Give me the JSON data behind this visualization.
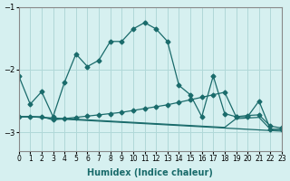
{
  "xlabel": "Humidex (Indice chaleur)",
  "ylabel": "",
  "background_color": "#d6f0f0",
  "grid_color": "#b0d8d8",
  "line_color": "#1a6b6b",
  "xlim": [
    0,
    23
  ],
  "ylim": [
    -3.3,
    -1.0
  ],
  "yticks": [
    -3,
    -2,
    -1
  ],
  "xticks": [
    0,
    1,
    2,
    3,
    4,
    5,
    6,
    7,
    8,
    9,
    10,
    11,
    12,
    13,
    14,
    15,
    16,
    17,
    18,
    19,
    20,
    21,
    22,
    23
  ],
  "series1": [
    -2.1,
    -2.55,
    -2.35,
    -2.75,
    -2.2,
    -1.75,
    -1.95,
    -1.85,
    -1.55,
    -1.55,
    -1.35,
    -1.25,
    -1.35,
    -1.55,
    -2.25,
    -2.4,
    -2.75,
    -2.1,
    -2.7,
    -2.75,
    -2.75,
    -2.5,
    -2.95,
    -2.95
  ],
  "series2": [
    -2.75,
    -2.75,
    -2.75,
    -2.8,
    -2.78,
    -2.76,
    -2.74,
    -2.72,
    -2.7,
    -2.68,
    -2.65,
    -2.62,
    -2.59,
    -2.56,
    -2.52,
    -2.48,
    -2.44,
    -2.4,
    -2.36,
    -2.75,
    -2.73,
    -2.72,
    -2.9,
    -2.93
  ],
  "series3": [
    -2.75,
    -2.75,
    -2.76,
    -2.78,
    -2.79,
    -2.8,
    -2.81,
    -2.82,
    -2.83,
    -2.84,
    -2.85,
    -2.86,
    -2.87,
    -2.88,
    -2.89,
    -2.9,
    -2.91,
    -2.92,
    -2.93,
    -2.94,
    -2.95,
    -2.96,
    -2.97,
    -2.98
  ],
  "series4": [
    -2.75,
    -2.75,
    -2.76,
    -2.77,
    -2.78,
    -2.79,
    -2.8,
    -2.81,
    -2.82,
    -2.83,
    -2.84,
    -2.85,
    -2.86,
    -2.87,
    -2.88,
    -2.89,
    -2.9,
    -2.91,
    -2.92,
    -2.78,
    -2.77,
    -2.76,
    -2.95,
    -2.95
  ]
}
